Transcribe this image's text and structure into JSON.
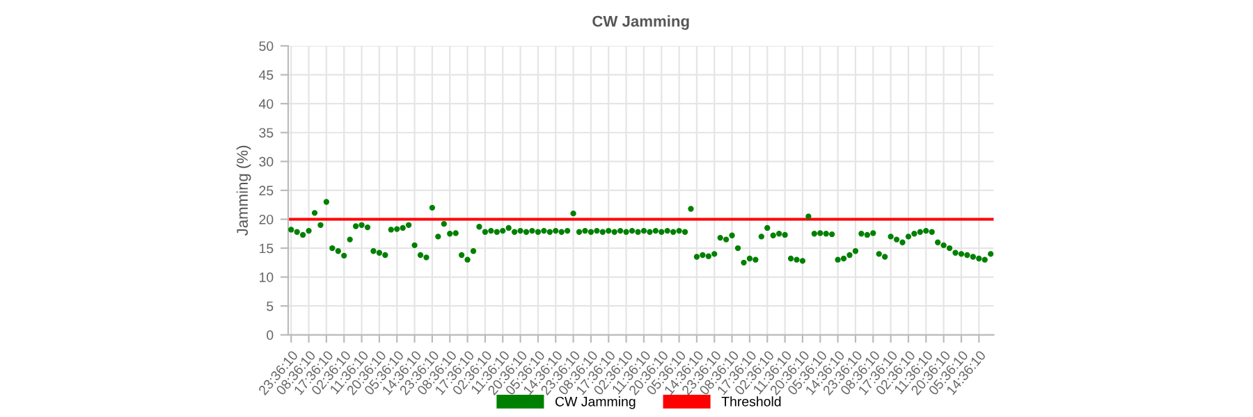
{
  "chart_data": {
    "type": "scatter",
    "title": "CW Jamming",
    "ylabel": "Jamming (%)",
    "categories": [
      "23:36:10",
      null,
      null,
      "08:36:10",
      null,
      null,
      "17:36:10",
      null,
      null,
      "02:36:10",
      null,
      null,
      "11:36:10",
      null,
      null,
      "20:36:10",
      null,
      null,
      "05:36:10",
      null,
      null,
      "14:36:10",
      null,
      null,
      "23:36:10",
      null,
      null,
      "08:36:10",
      null,
      null,
      "17:36:10",
      null,
      null,
      "02:36:10",
      null,
      null,
      "11:36:10",
      null,
      null,
      "20:36:10",
      null,
      null,
      "05:36:10",
      null,
      null,
      "14:36:10",
      null,
      null,
      "23:36:10",
      null,
      null,
      "08:36:10",
      null,
      null,
      "17:36:10",
      null,
      null,
      "02:36:10",
      null,
      null,
      "11:36:10",
      null,
      null,
      "20:36:10",
      null,
      null,
      "05:36:10",
      null,
      null,
      "14:36:10",
      null,
      null,
      "23:36:10",
      null,
      null,
      "08:36:10",
      null,
      null,
      "17:36:10",
      null,
      null,
      "02:36:10",
      null,
      null,
      "11:36:10",
      null,
      null,
      "20:36:10",
      null,
      null,
      "05:36:10",
      null,
      null,
      "14:36:10",
      null,
      null,
      "23:36:10",
      null,
      null,
      "08:36:10",
      null,
      null,
      "17:36:10",
      null,
      null,
      "02:36:10",
      null,
      null,
      "11:36:10",
      null,
      null,
      "20:36:10",
      null,
      null,
      "05:36:10",
      null,
      null,
      "14:36:10",
      null,
      null
    ],
    "series": [
      {
        "name": "CW Jamming",
        "color": "#008000",
        "values": [
          18.2,
          17.8,
          17.3,
          18.0,
          21.1,
          19.0,
          23.0,
          15.0,
          14.5,
          13.7,
          16.5,
          18.8,
          19.0,
          18.6,
          14.5,
          14.2,
          13.8,
          18.2,
          18.3,
          18.5,
          19.0,
          15.5,
          13.8,
          13.4,
          22.0,
          17.0,
          19.2,
          17.5,
          17.6,
          13.8,
          13.0,
          14.5,
          18.7,
          17.8,
          18.0,
          17.8,
          18.0,
          18.5,
          17.8,
          18.0,
          17.8,
          18.0,
          17.8,
          18.0,
          17.8,
          18.0,
          17.8,
          18.0,
          21.0,
          17.8,
          18.0,
          17.8,
          18.0,
          17.8,
          18.0,
          17.8,
          18.0,
          17.8,
          18.0,
          17.8,
          18.0,
          17.8,
          18.0,
          17.8,
          18.0,
          17.8,
          18.0,
          17.8,
          21.8,
          13.5,
          13.8,
          13.6,
          14.0,
          16.8,
          16.5,
          17.2,
          15.0,
          12.5,
          13.2,
          13.0,
          17.0,
          18.5,
          17.2,
          17.5,
          17.3,
          13.2,
          13.0,
          12.8,
          20.5,
          17.5,
          17.6,
          17.5,
          17.4,
          13.0,
          13.2,
          13.8,
          14.5,
          17.5,
          17.3,
          17.6,
          14.0,
          13.5,
          17.0,
          16.5,
          16.0,
          17.0,
          17.5,
          17.8,
          18.0,
          17.8,
          16.0,
          15.5,
          15.0,
          14.2,
          14.0,
          13.8,
          13.5,
          13.2,
          13.0,
          14.0
        ]
      }
    ],
    "ref_lines": [
      {
        "axis": "y",
        "value": 20,
        "label": "Threshold",
        "color": "#ff0000"
      }
    ],
    "ylim": [
      0,
      50
    ],
    "yticks": [
      0,
      5,
      10,
      15,
      20,
      25,
      30,
      35,
      40,
      45,
      50
    ],
    "grid": true,
    "legend": "bottom",
    "marker": "circle"
  }
}
